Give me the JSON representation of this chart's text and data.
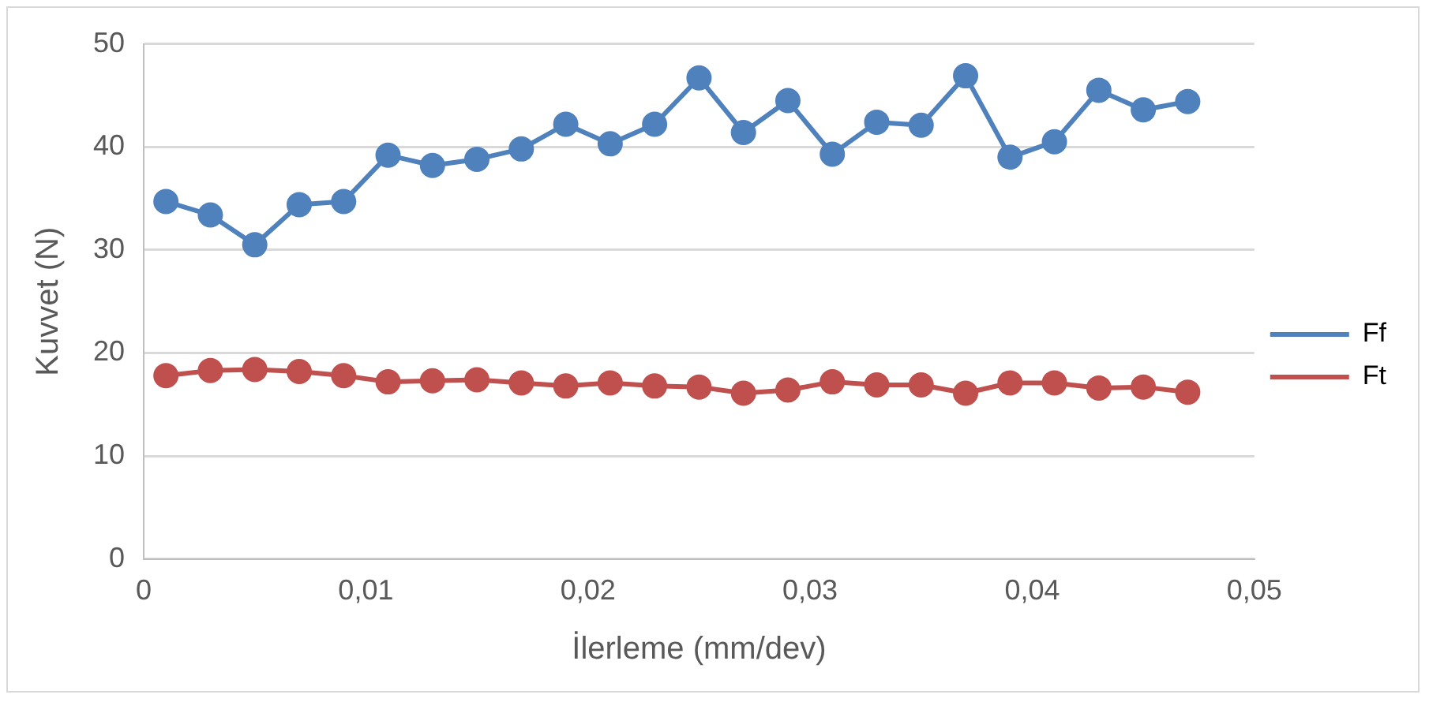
{
  "chart_data": {
    "type": "line",
    "xlabel": "İlerleme (mm/dev)",
    "ylabel": "Kuvvet (N)",
    "x": [
      0.001,
      0.003,
      0.005,
      0.007,
      0.009,
      0.011,
      0.013,
      0.015,
      0.017,
      0.019,
      0.021,
      0.023,
      0.025,
      0.027,
      0.029,
      0.031,
      0.033,
      0.035,
      0.037,
      0.039,
      0.041,
      0.043,
      0.045,
      0.047
    ],
    "series": [
      {
        "name": "Ff",
        "color": "#4f81bd",
        "values": [
          34.7,
          33.4,
          30.5,
          34.4,
          34.7,
          39.2,
          38.2,
          38.8,
          39.8,
          42.2,
          40.3,
          42.2,
          46.7,
          41.4,
          44.5,
          39.3,
          42.4,
          42.1,
          46.9,
          39.0,
          40.5,
          45.5,
          43.6,
          44.4
        ]
      },
      {
        "name": "Ft",
        "color": "#c0504d",
        "values": [
          17.8,
          18.3,
          18.4,
          18.2,
          17.8,
          17.2,
          17.3,
          17.4,
          17.1,
          16.8,
          17.1,
          16.8,
          16.7,
          16.1,
          16.4,
          17.2,
          16.9,
          16.9,
          16.1,
          17.1,
          17.1,
          16.6,
          16.7,
          16.2
        ]
      }
    ],
    "xlim": [
      0,
      0.05
    ],
    "xticks": [
      0,
      {
        "value": 0.01,
        "label": "0,01"
      },
      {
        "value": 0.02,
        "label": "0,02"
      },
      {
        "value": 0.03,
        "label": "0,03"
      },
      {
        "value": 0.04,
        "label": "0,04"
      },
      {
        "value": 0.05,
        "label": "0,05"
      }
    ],
    "ylim": [
      0,
      50
    ],
    "yticks": [
      0,
      10,
      20,
      30,
      40,
      50
    ],
    "grid": "y",
    "legend": "right",
    "marker": "circle",
    "line_style": "solid"
  }
}
